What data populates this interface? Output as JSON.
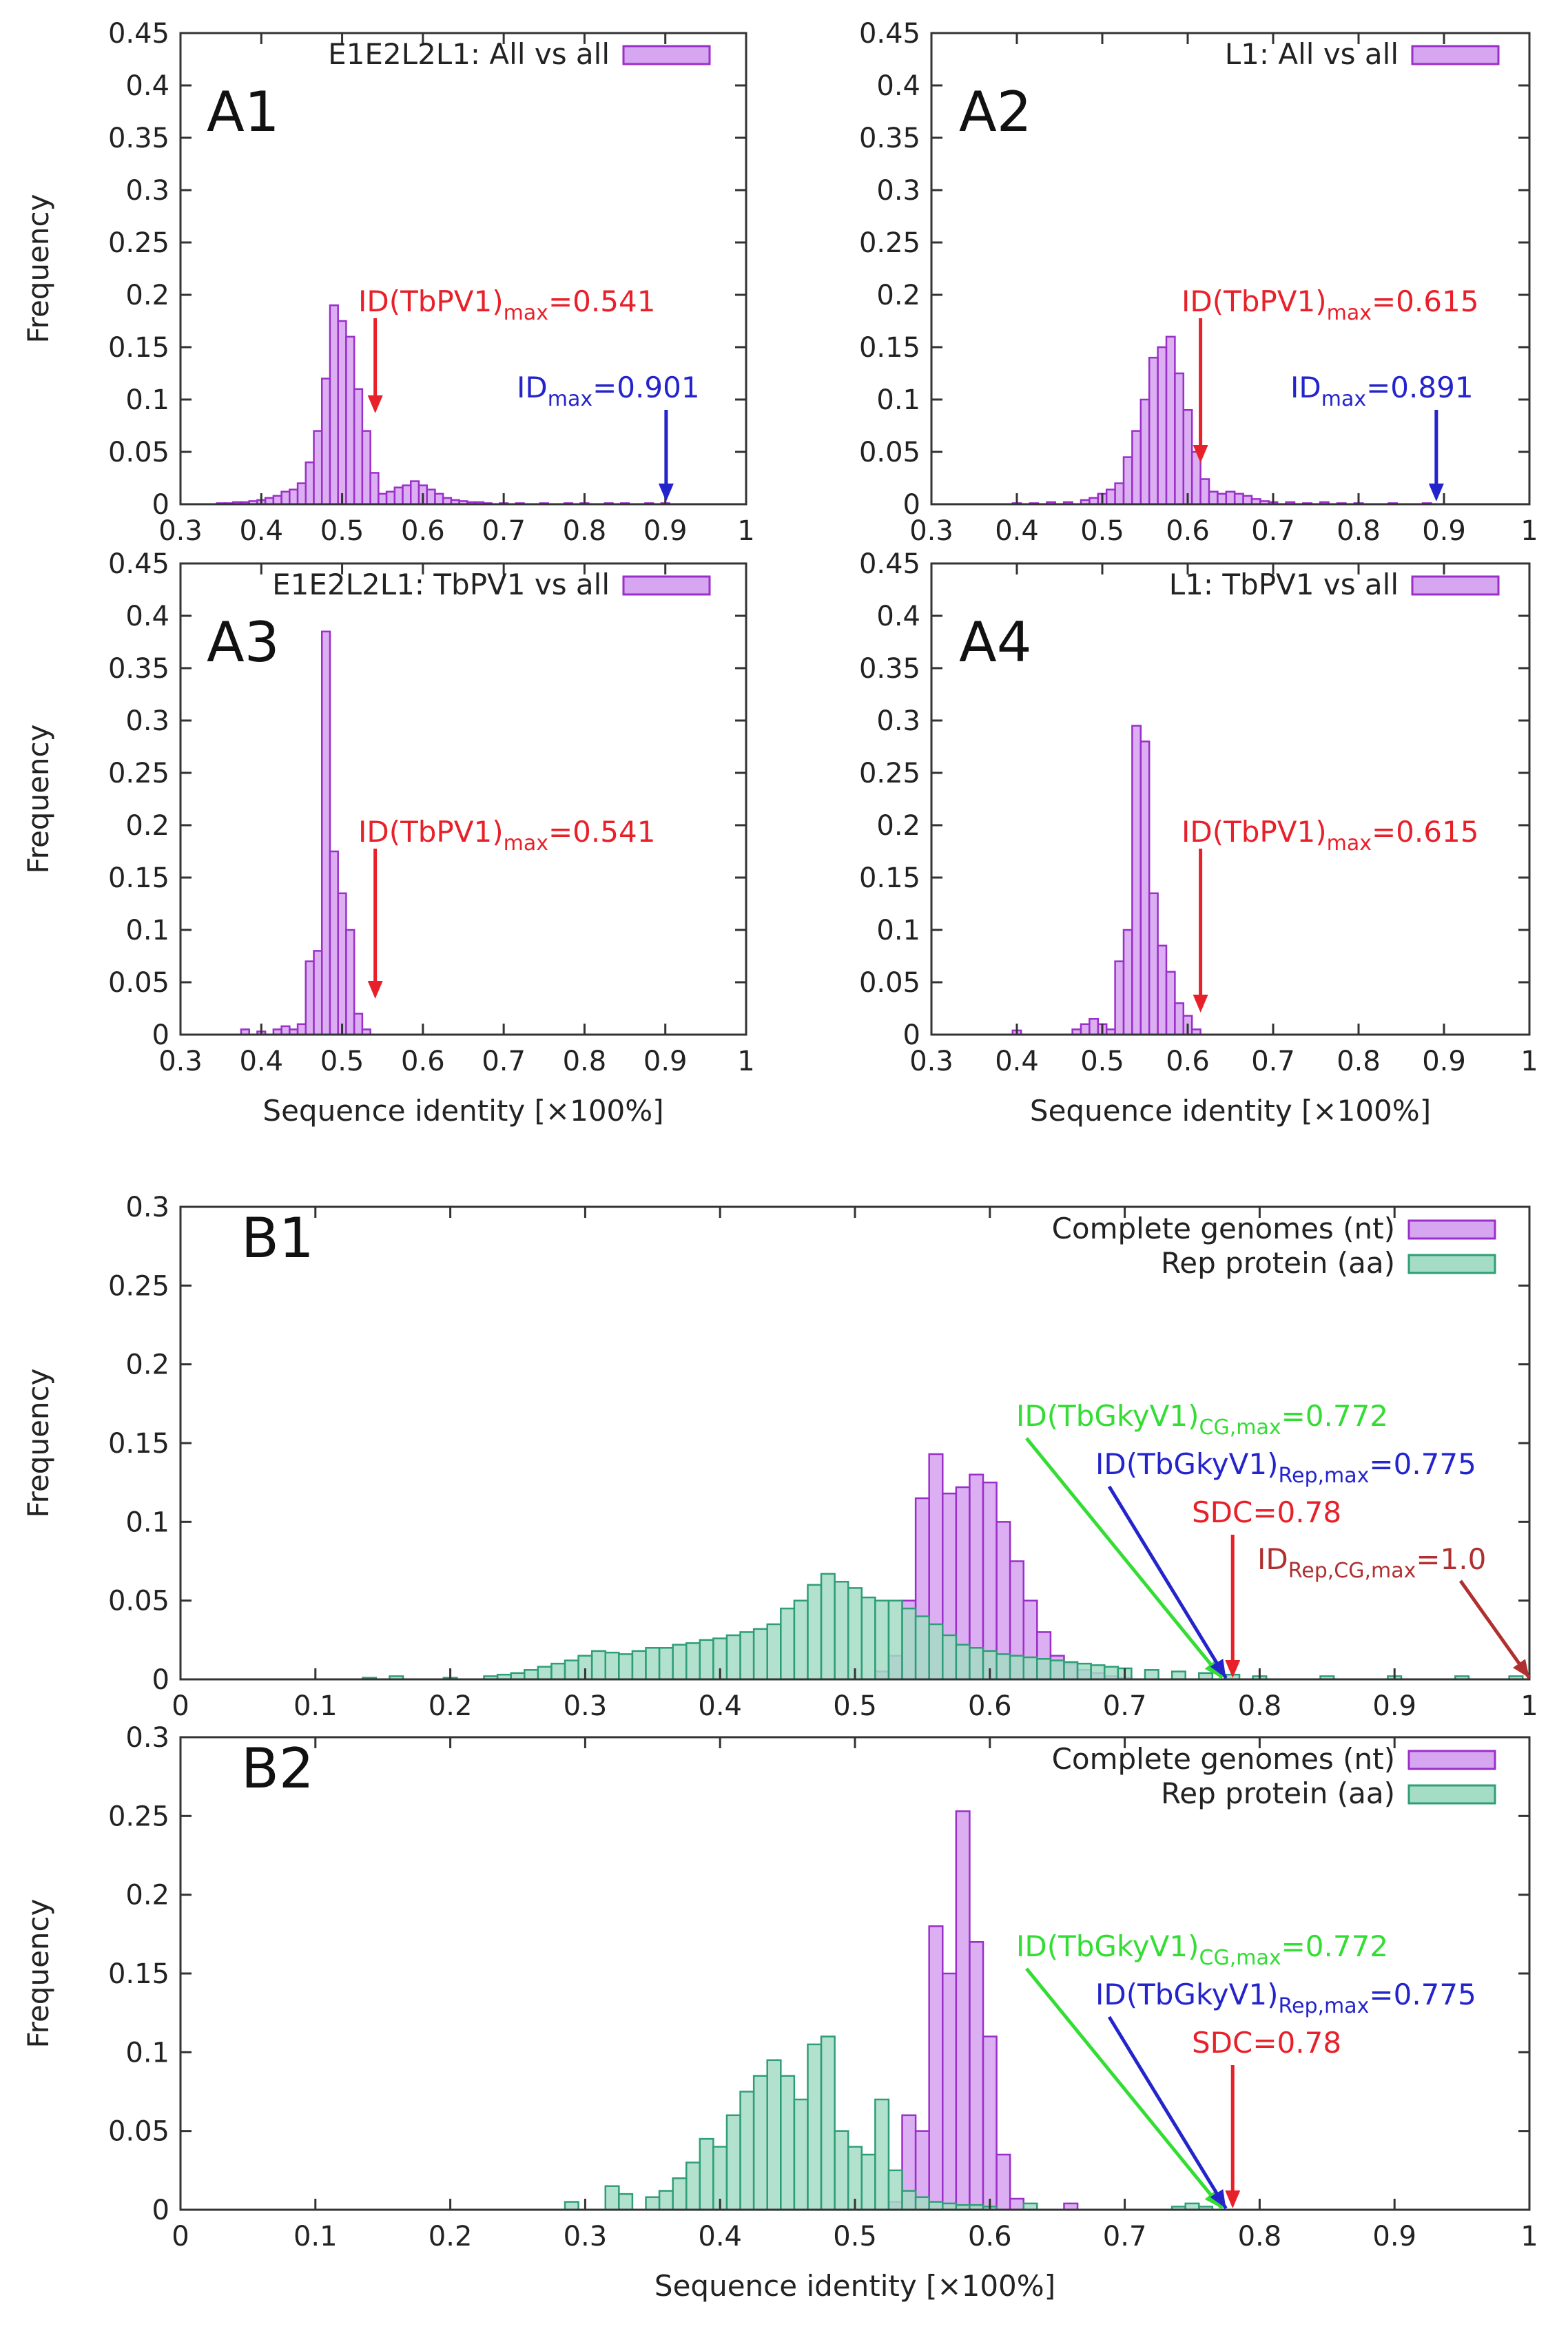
{
  "colors": {
    "purple_fill": "#d7a6f0",
    "purple_edge": "#9b2fc9",
    "teal_fill": "#a5dcc6",
    "teal_edge": "#2e9e78",
    "red": "#e8202a",
    "blue": "#2424cc",
    "green": "#33dd33",
    "brown": "#b03030",
    "axis": "#333333"
  },
  "chart_data": [
    {
      "id": "A1",
      "type": "bar",
      "panel_label": "A1",
      "legend": "E1E2L2L1: All vs all",
      "ylabel": "Frequency",
      "xlabel": "",
      "xlim": [
        0.3,
        1
      ],
      "ylim": [
        0,
        0.45
      ],
      "xticks": [
        "0.3",
        "0.4",
        "0.5",
        "0.6",
        "0.7",
        "0.8",
        "0.9",
        "1"
      ],
      "yticks": [
        "0",
        "0.05",
        "0.1",
        "0.15",
        "0.2",
        "0.25",
        "0.3",
        "0.35",
        "0.4",
        "0.45"
      ],
      "bin_width": 0.01,
      "series": [
        {
          "name": "E1E2L2L1: All vs all",
          "style": "purple",
          "x": [
            0.35,
            0.36,
            0.37,
            0.38,
            0.39,
            0.4,
            0.41,
            0.42,
            0.43,
            0.44,
            0.45,
            0.46,
            0.47,
            0.48,
            0.49,
            0.5,
            0.51,
            0.52,
            0.53,
            0.54,
            0.55,
            0.56,
            0.57,
            0.58,
            0.59,
            0.6,
            0.61,
            0.62,
            0.63,
            0.64,
            0.65,
            0.66,
            0.67,
            0.68,
            0.7,
            0.72,
            0.75,
            0.78,
            0.8,
            0.83,
            0.85,
            0.88,
            0.9
          ],
          "values": [
            0.001,
            0.001,
            0.002,
            0.002,
            0.003,
            0.004,
            0.006,
            0.008,
            0.012,
            0.014,
            0.02,
            0.04,
            0.07,
            0.12,
            0.19,
            0.175,
            0.16,
            0.11,
            0.07,
            0.03,
            0.01,
            0.012,
            0.016,
            0.018,
            0.022,
            0.018,
            0.014,
            0.01,
            0.006,
            0.004,
            0.003,
            0.002,
            0.002,
            0.001,
            0.001,
            0.001,
            0.001,
            0.001,
            0.001,
            0.001,
            0.001,
            0.001,
            0.001
          ]
        }
      ],
      "annotations": [
        {
          "text": "ID(TbPV1)",
          "sub": "max",
          "value_text": "=0.541",
          "color": "red",
          "x": 0.541
        },
        {
          "text": "ID",
          "sub": "max",
          "value_text": "=0.901",
          "color": "blue",
          "x": 0.901
        }
      ]
    },
    {
      "id": "A2",
      "type": "bar",
      "panel_label": "A2",
      "legend": "L1: All vs all",
      "ylabel": "",
      "xlabel": "",
      "xlim": [
        0.3,
        1
      ],
      "ylim": [
        0,
        0.45
      ],
      "xticks": [
        "0.3",
        "0.4",
        "0.5",
        "0.6",
        "0.7",
        "0.8",
        "0.9",
        "1"
      ],
      "yticks": [
        "0",
        "0.05",
        "0.1",
        "0.15",
        "0.2",
        "0.25",
        "0.3",
        "0.35",
        "0.4",
        "0.45"
      ],
      "bin_width": 0.01,
      "series": [
        {
          "name": "L1: All vs all",
          "style": "purple",
          "x": [
            0.4,
            0.42,
            0.44,
            0.46,
            0.48,
            0.49,
            0.5,
            0.51,
            0.52,
            0.53,
            0.54,
            0.55,
            0.56,
            0.57,
            0.58,
            0.59,
            0.6,
            0.61,
            0.62,
            0.63,
            0.64,
            0.65,
            0.66,
            0.67,
            0.68,
            0.69,
            0.7,
            0.72,
            0.74,
            0.76,
            0.78,
            0.8,
            0.84,
            0.88
          ],
          "values": [
            0.001,
            0.001,
            0.002,
            0.002,
            0.004,
            0.006,
            0.01,
            0.014,
            0.02,
            0.045,
            0.07,
            0.1,
            0.14,
            0.15,
            0.16,
            0.125,
            0.09,
            0.05,
            0.024,
            0.012,
            0.01,
            0.012,
            0.01,
            0.008,
            0.005,
            0.003,
            0.002,
            0.002,
            0.001,
            0.002,
            0.001,
            0.001,
            0.001,
            0.001
          ]
        }
      ],
      "annotations": [
        {
          "text": "ID(TbPV1)",
          "sub": "max",
          "value_text": "=0.615",
          "color": "red",
          "x": 0.615
        },
        {
          "text": "ID",
          "sub": "max",
          "value_text": "=0.891",
          "color": "blue",
          "x": 0.891
        }
      ]
    },
    {
      "id": "A3",
      "type": "bar",
      "panel_label": "A3",
      "legend": "E1E2L2L1: TbPV1 vs all",
      "ylabel": "Frequency",
      "xlabel": "Sequence identity [×100%]",
      "xlim": [
        0.3,
        1
      ],
      "ylim": [
        0,
        0.45
      ],
      "xticks": [
        "0.3",
        "0.4",
        "0.5",
        "0.6",
        "0.7",
        "0.8",
        "0.9",
        "1"
      ],
      "yticks": [
        "0",
        "0.05",
        "0.1",
        "0.15",
        "0.2",
        "0.25",
        "0.3",
        "0.35",
        "0.4",
        "0.45"
      ],
      "bin_width": 0.01,
      "series": [
        {
          "name": "E1E2L2L1: TbPV1 vs all",
          "style": "purple",
          "x": [
            0.38,
            0.4,
            0.42,
            0.43,
            0.44,
            0.45,
            0.46,
            0.47,
            0.48,
            0.49,
            0.5,
            0.51,
            0.52,
            0.53
          ],
          "values": [
            0.005,
            0.003,
            0.005,
            0.008,
            0.005,
            0.01,
            0.07,
            0.08,
            0.385,
            0.175,
            0.135,
            0.1,
            0.02,
            0.005
          ]
        }
      ],
      "annotations": [
        {
          "text": "ID(TbPV1)",
          "sub": "max",
          "value_text": "=0.541",
          "color": "red",
          "x": 0.541
        }
      ]
    },
    {
      "id": "A4",
      "type": "bar",
      "panel_label": "A4",
      "legend": "L1: TbPV1 vs all",
      "ylabel": "",
      "xlabel": "Sequence identity [×100%]",
      "xlim": [
        0.3,
        1
      ],
      "ylim": [
        0,
        0.45
      ],
      "xticks": [
        "0.3",
        "0.4",
        "0.5",
        "0.6",
        "0.7",
        "0.8",
        "0.9",
        "1"
      ],
      "yticks": [
        "0",
        "0.05",
        "0.1",
        "0.15",
        "0.2",
        "0.25",
        "0.3",
        "0.35",
        "0.4",
        "0.45"
      ],
      "bin_width": 0.01,
      "series": [
        {
          "name": "L1: TbPV1 vs all",
          "style": "purple",
          "x": [
            0.4,
            0.47,
            0.48,
            0.49,
            0.5,
            0.51,
            0.52,
            0.53,
            0.54,
            0.55,
            0.56,
            0.57,
            0.58,
            0.59,
            0.6,
            0.61
          ],
          "values": [
            0.004,
            0.005,
            0.01,
            0.015,
            0.01,
            0.005,
            0.07,
            0.1,
            0.295,
            0.28,
            0.135,
            0.085,
            0.06,
            0.03,
            0.018,
            0.005
          ]
        }
      ],
      "annotations": [
        {
          "text": "ID(TbPV1)",
          "sub": "max",
          "value_text": "=0.615",
          "color": "red",
          "x": 0.615
        }
      ]
    },
    {
      "id": "B1",
      "type": "bar",
      "panel_label": "B1",
      "ylabel": "Frequency",
      "xlabel": "",
      "xlim": [
        0,
        1
      ],
      "ylim": [
        0,
        0.3
      ],
      "xticks": [
        "0",
        "0.1",
        "0.2",
        "0.3",
        "0.4",
        "0.5",
        "0.6",
        "0.7",
        "0.8",
        "0.9",
        "1"
      ],
      "yticks": [
        "0",
        "0.05",
        "0.1",
        "0.15",
        "0.2",
        "0.25",
        "0.3"
      ],
      "bin_width": 0.01,
      "series": [
        {
          "name": "Complete genomes (nt)",
          "style": "purple",
          "x": [
            0.52,
            0.53,
            0.54,
            0.55,
            0.56,
            0.57,
            0.58,
            0.59,
            0.6,
            0.61,
            0.62,
            0.63,
            0.64,
            0.65,
            0.66,
            0.67,
            0.68,
            0.69,
            0.7
          ],
          "values": [
            0.005,
            0.015,
            0.05,
            0.115,
            0.143,
            0.118,
            0.122,
            0.13,
            0.125,
            0.1,
            0.075,
            0.05,
            0.03,
            0.015,
            0.01,
            0.006,
            0.004,
            0.002,
            0.001
          ]
        },
        {
          "name": "Rep protein (aa)",
          "style": "teal",
          "x": [
            0.14,
            0.16,
            0.2,
            0.23,
            0.24,
            0.25,
            0.26,
            0.27,
            0.28,
            0.29,
            0.3,
            0.31,
            0.32,
            0.33,
            0.34,
            0.35,
            0.36,
            0.37,
            0.38,
            0.39,
            0.4,
            0.41,
            0.42,
            0.43,
            0.44,
            0.45,
            0.46,
            0.47,
            0.48,
            0.49,
            0.5,
            0.51,
            0.52,
            0.53,
            0.54,
            0.55,
            0.56,
            0.57,
            0.58,
            0.59,
            0.6,
            0.61,
            0.62,
            0.63,
            0.64,
            0.65,
            0.66,
            0.67,
            0.68,
            0.69,
            0.7,
            0.72,
            0.74,
            0.76,
            0.78,
            0.8,
            0.85,
            0.9,
            0.95,
            0.99
          ],
          "values": [
            0.001,
            0.002,
            0.001,
            0.002,
            0.003,
            0.004,
            0.006,
            0.008,
            0.01,
            0.012,
            0.015,
            0.018,
            0.017,
            0.016,
            0.018,
            0.02,
            0.02,
            0.022,
            0.023,
            0.025,
            0.026,
            0.028,
            0.03,
            0.032,
            0.035,
            0.045,
            0.05,
            0.06,
            0.067,
            0.062,
            0.058,
            0.052,
            0.05,
            0.05,
            0.045,
            0.04,
            0.035,
            0.028,
            0.022,
            0.02,
            0.018,
            0.016,
            0.015,
            0.014,
            0.013,
            0.012,
            0.011,
            0.01,
            0.009,
            0.008,
            0.007,
            0.006,
            0.005,
            0.004,
            0.003,
            0.002,
            0.002,
            0.002,
            0.002,
            0.002
          ]
        }
      ],
      "annotations": [
        {
          "text": "ID(TbGkyV1)",
          "sub": "CG,max",
          "value_text": "=0.772",
          "color": "green",
          "x": 0.772
        },
        {
          "text": "ID(TbGkyV1)",
          "sub": "Rep,max",
          "value_text": "=0.775",
          "color": "blue",
          "x": 0.775
        },
        {
          "text": "SDC=0.78",
          "sub": "",
          "value_text": "",
          "color": "red",
          "x": 0.78
        },
        {
          "text": "ID",
          "sub": "Rep,CG,max",
          "value_text": "=1.0",
          "color": "brown",
          "x": 1.0
        }
      ]
    },
    {
      "id": "B2",
      "type": "bar",
      "panel_label": "B2",
      "ylabel": "Frequency",
      "xlabel": "Sequence identity [×100%]",
      "xlim": [
        0,
        1
      ],
      "ylim": [
        0,
        0.3
      ],
      "xticks": [
        "0",
        "0.1",
        "0.2",
        "0.3",
        "0.4",
        "0.5",
        "0.6",
        "0.7",
        "0.8",
        "0.9",
        "1"
      ],
      "yticks": [
        "0",
        "0.05",
        "0.1",
        "0.15",
        "0.2",
        "0.25",
        "0.3"
      ],
      "bin_width": 0.01,
      "series": [
        {
          "name": "Complete genomes (nt)",
          "style": "purple",
          "x": [
            0.53,
            0.54,
            0.55,
            0.56,
            0.57,
            0.58,
            0.59,
            0.6,
            0.61,
            0.62,
            0.66
          ],
          "values": [
            0.005,
            0.06,
            0.05,
            0.18,
            0.15,
            0.253,
            0.17,
            0.11,
            0.035,
            0.007,
            0.004
          ]
        },
        {
          "name": "Rep protein (aa)",
          "style": "teal",
          "x": [
            0.29,
            0.32,
            0.33,
            0.35,
            0.36,
            0.37,
            0.38,
            0.39,
            0.4,
            0.41,
            0.42,
            0.43,
            0.44,
            0.45,
            0.46,
            0.47,
            0.48,
            0.49,
            0.5,
            0.51,
            0.52,
            0.53,
            0.54,
            0.55,
            0.56,
            0.57,
            0.58,
            0.59,
            0.6,
            0.63,
            0.74,
            0.75,
            0.76
          ],
          "values": [
            0.005,
            0.015,
            0.01,
            0.008,
            0.012,
            0.02,
            0.03,
            0.045,
            0.04,
            0.06,
            0.075,
            0.085,
            0.095,
            0.085,
            0.07,
            0.105,
            0.11,
            0.05,
            0.04,
            0.035,
            0.07,
            0.025,
            0.012,
            0.008,
            0.005,
            0.004,
            0.003,
            0.003,
            0.002,
            0.004,
            0.002,
            0.004,
            0.002
          ]
        }
      ],
      "annotations": [
        {
          "text": "ID(TbGkyV1)",
          "sub": "CG,max",
          "value_text": "=0.772",
          "color": "green",
          "x": 0.772
        },
        {
          "text": "ID(TbGkyV1)",
          "sub": "Rep,max",
          "value_text": "=0.775",
          "color": "blue",
          "x": 0.775
        },
        {
          "text": "SDC=0.78",
          "sub": "",
          "value_text": "",
          "color": "red",
          "x": 0.78
        }
      ]
    }
  ]
}
